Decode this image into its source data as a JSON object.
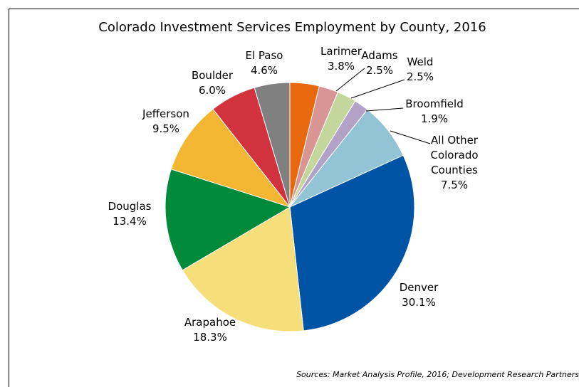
{
  "chart_data": {
    "type": "pie",
    "title": "Colorado Investment Services Employment by County, 2016",
    "categories": [
      "Larimer",
      "Adams",
      "Weld",
      "Broomfield",
      "All Other Colorado Counties",
      "Denver",
      "Arapahoe",
      "Douglas",
      "Jefferson",
      "Boulder",
      "El Paso"
    ],
    "values": [
      3.8,
      2.5,
      2.5,
      1.9,
      7.5,
      30.1,
      18.3,
      13.4,
      9.5,
      6.0,
      4.6
    ],
    "value_labels": [
      "3.8%",
      "2.5%",
      "2.5%",
      "1.9%",
      "7.5%",
      "30.1%",
      "18.3%",
      "13.4%",
      "9.5%",
      "6.0%",
      "4.6%"
    ],
    "colors": [
      "#e8680e",
      "#d99594",
      "#c3d69b",
      "#b3a2c7",
      "#93c4d6",
      "#0054a6",
      "#f6df7a",
      "#008a3a",
      "#f2b632",
      "#d2313e",
      "#808080"
    ],
    "source": "Sources: Market Analysis Profile, 2016; Development Research Partners"
  }
}
